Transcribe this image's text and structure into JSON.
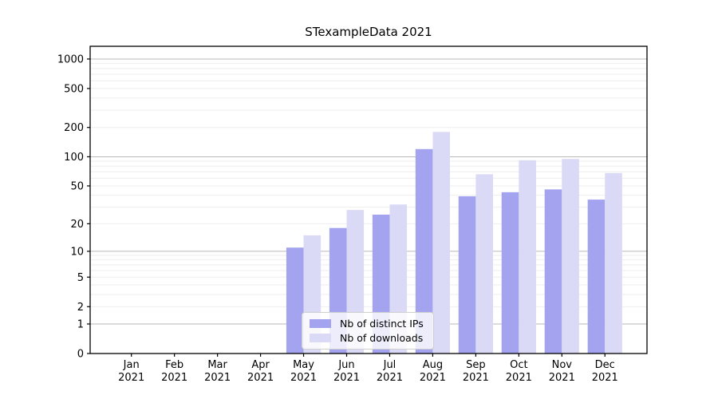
{
  "title": "STexampleData 2021",
  "chart_data": {
    "type": "bar",
    "title": "STexampleData 2021",
    "categories": [
      "Jan 2021",
      "Feb 2021",
      "Mar 2021",
      "Apr 2021",
      "May 2021",
      "Jun 2021",
      "Jul 2021",
      "Aug 2021",
      "Sep 2021",
      "Oct 2021",
      "Nov 2021",
      "Dec 2021"
    ],
    "series": [
      {
        "name": "Nb of distinct IPs",
        "color": "#a3a3ef",
        "values": [
          0,
          0,
          0,
          0,
          11,
          18,
          25,
          120,
          39,
          43,
          46,
          36
        ]
      },
      {
        "name": "Nb of downloads",
        "color": "#dadaf6",
        "values": [
          0,
          0,
          0,
          0,
          15,
          28,
          32,
          180,
          66,
          92,
          95,
          68
        ]
      }
    ],
    "y_axis": {
      "scale": "log10(value+1)",
      "tick_values": [
        0,
        1,
        2,
        5,
        10,
        20,
        50,
        100,
        200,
        500,
        1000
      ],
      "range": [
        0,
        1350
      ],
      "grid": true
    },
    "x_axis": {
      "tick_year_line": "2021"
    },
    "legend": {
      "position": "lower-center"
    }
  },
  "colors": {
    "bar_dark": "#a3a3ef",
    "bar_light": "#dadaf6",
    "grid_major": "#b9b9b9",
    "grid_minor": "#eeeeee",
    "axis": "#000000",
    "background": "#ffffff"
  }
}
